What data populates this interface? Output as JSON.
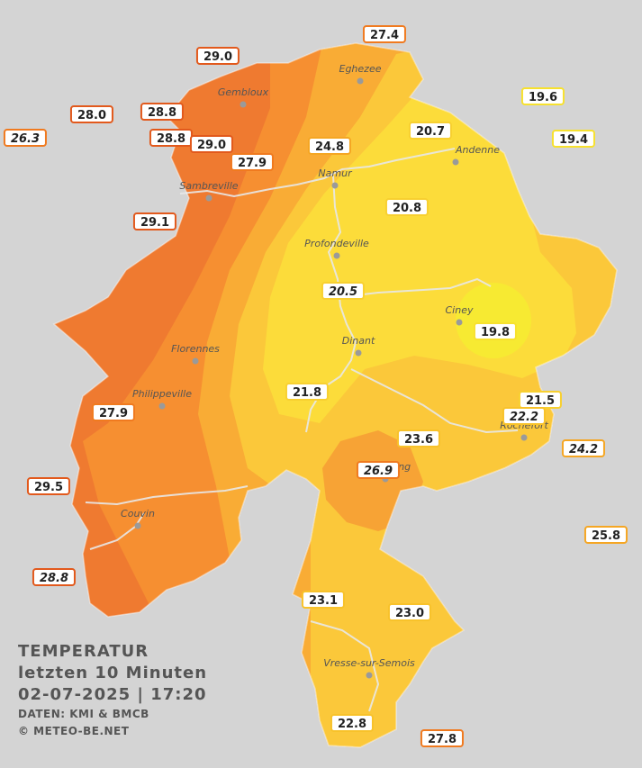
{
  "legend": {
    "title": "TEMPERATUR",
    "period": "letzten 10 Minuten",
    "datetime": "02-07-2025  |  17:20",
    "source": "DATEN: KMI & BMCB",
    "copyright": "© METEO-BE.NET"
  },
  "colors": {
    "background": "#d4d4d4",
    "temp_19": "#f7ea32",
    "temp_20": "#fcdc3a",
    "temp_22": "#fbc83a",
    "temp_24": "#f9ac35",
    "temp_26": "#f68f31",
    "temp_28": "#ef7a30",
    "rivers": "#e8e8e8"
  },
  "cities": [
    {
      "name": "Eghezee"
    },
    {
      "name": "Gembloux"
    },
    {
      "name": "Andenne"
    },
    {
      "name": "Namur"
    },
    {
      "name": "Sambreville"
    },
    {
      "name": "Profondeville"
    },
    {
      "name": "Ciney"
    },
    {
      "name": "Dinant"
    },
    {
      "name": "Florennes"
    },
    {
      "name": "Philippeville"
    },
    {
      "name": "Rochefort"
    },
    {
      "name": "Beauraing"
    },
    {
      "name": "Couvin"
    },
    {
      "name": "Vresse-sur-Semois"
    }
  ],
  "readings": [
    {
      "value": "27.4",
      "border": "#f07a1f",
      "italic": false
    },
    {
      "value": "29.0",
      "border": "#e2591c",
      "italic": false
    },
    {
      "value": "28.0",
      "border": "#e2591c",
      "italic": false
    },
    {
      "value": "28.8",
      "border": "#e2591c",
      "italic": false
    },
    {
      "value": "26.3",
      "border": "#f07a1f",
      "italic": true
    },
    {
      "value": "28.8",
      "border": "#e2591c",
      "italic": false
    },
    {
      "value": "29.0",
      "border": "#e2591c",
      "italic": false
    },
    {
      "value": "27.9",
      "border": "#f07a1f",
      "italic": false
    },
    {
      "value": "24.8",
      "border": "#f5a623",
      "italic": false
    },
    {
      "value": "20.7",
      "border": "#f8d030",
      "italic": false
    },
    {
      "value": "19.6",
      "border": "#f7e12e",
      "italic": false
    },
    {
      "value": "19.4",
      "border": "#f7e12e",
      "italic": false
    },
    {
      "value": "29.1",
      "border": "#e2591c",
      "italic": false
    },
    {
      "value": "20.8",
      "border": "#f8d030",
      "italic": false
    },
    {
      "value": "20.5",
      "border": "#f8d030",
      "italic": true
    },
    {
      "value": "19.8",
      "border": "#f7e12e",
      "italic": false
    },
    {
      "value": "21.8",
      "border": "#f8d030",
      "italic": false
    },
    {
      "value": "21.5",
      "border": "#f8d030",
      "italic": false
    },
    {
      "value": "22.2",
      "border": "#f8c22a",
      "italic": true
    },
    {
      "value": "27.9",
      "border": "#f07a1f",
      "italic": false
    },
    {
      "value": "23.6",
      "border": "#f8c22a",
      "italic": false
    },
    {
      "value": "24.2",
      "border": "#f5a623",
      "italic": true
    },
    {
      "value": "26.9",
      "border": "#f07a1f",
      "italic": true
    },
    {
      "value": "29.5",
      "border": "#e2591c",
      "italic": false
    },
    {
      "value": "25.8",
      "border": "#f5a623",
      "italic": false
    },
    {
      "value": "28.8",
      "border": "#e2591c",
      "italic": true
    },
    {
      "value": "23.1",
      "border": "#f8c22a",
      "italic": false
    },
    {
      "value": "23.0",
      "border": "#f8c22a",
      "italic": false
    },
    {
      "value": "22.8",
      "border": "#f8c22a",
      "italic": false
    },
    {
      "value": "27.8",
      "border": "#f07a1f",
      "italic": false
    }
  ]
}
